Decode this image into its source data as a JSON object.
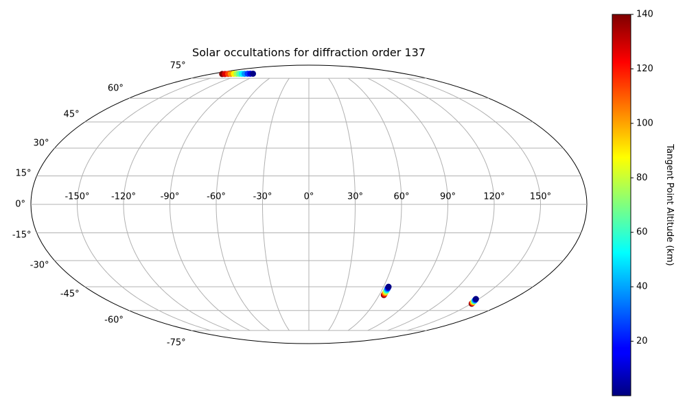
{
  "chart_data": {
    "type": "scatter",
    "projection": "mollweide",
    "title": "Solar occultations for diffraction order 137",
    "colorbar_label": "Tangent Point Altitude (km)",
    "colormap": "jet",
    "clim": [
      0,
      140
    ],
    "cticks": [
      20,
      40,
      60,
      80,
      100,
      120,
      140
    ],
    "xlim": [
      -180,
      180
    ],
    "ylim": [
      -90,
      90
    ],
    "grid": true,
    "xticks": [
      {
        "value": -150,
        "label": "-150°"
      },
      {
        "value": -120,
        "label": "-120°"
      },
      {
        "value": -90,
        "label": "-90°"
      },
      {
        "value": -60,
        "label": "-60°"
      },
      {
        "value": -30,
        "label": "-30°"
      },
      {
        "value": 0,
        "label": "0°"
      },
      {
        "value": 30,
        "label": "30°"
      },
      {
        "value": 60,
        "label": "60°"
      },
      {
        "value": 90,
        "label": "90°"
      },
      {
        "value": 120,
        "label": "120°"
      },
      {
        "value": 150,
        "label": "150°"
      }
    ],
    "yticks": [
      {
        "value": -75,
        "label": "-75°"
      },
      {
        "value": -60,
        "label": "-60°"
      },
      {
        "value": -45,
        "label": "-45°"
      },
      {
        "value": -30,
        "label": "-30°"
      },
      {
        "value": -15,
        "label": "-15°"
      },
      {
        "value": 0,
        "label": "0°"
      },
      {
        "value": 15,
        "label": "15°"
      },
      {
        "value": 30,
        "label": "30°"
      },
      {
        "value": 45,
        "label": "45°"
      },
      {
        "value": 60,
        "label": "60°"
      },
      {
        "value": 75,
        "label": "75°"
      }
    ],
    "x": [
      -160,
      -155,
      -150,
      -145,
      -140,
      -135,
      -130,
      -125,
      -120,
      -115,
      -110,
      -105,
      64,
      64,
      64,
      64,
      64,
      64,
      64,
      64,
      64,
      64,
      64,
      150.5,
      150,
      149.5,
      149,
      148.5,
      148,
      147.5
    ],
    "values": [
      78.8,
      78.8,
      78.9,
      78.9,
      79,
      79,
      79,
      79,
      79,
      79.1,
      79.1,
      79.1,
      -50,
      -49.5,
      -49,
      -48.5,
      -48,
      -47.5,
      -47,
      -46.5,
      -46,
      -45.5,
      -45,
      -55.5,
      -55,
      -54.5,
      -54,
      -53.5,
      -53,
      -52.5
    ],
    "colors": [
      140,
      127,
      114,
      102,
      89,
      76,
      64,
      51,
      38,
      25,
      13,
      1,
      140,
      126,
      112,
      98,
      84,
      70,
      56,
      42,
      28,
      14,
      1,
      140,
      117,
      93,
      70,
      47,
      23,
      1
    ]
  }
}
